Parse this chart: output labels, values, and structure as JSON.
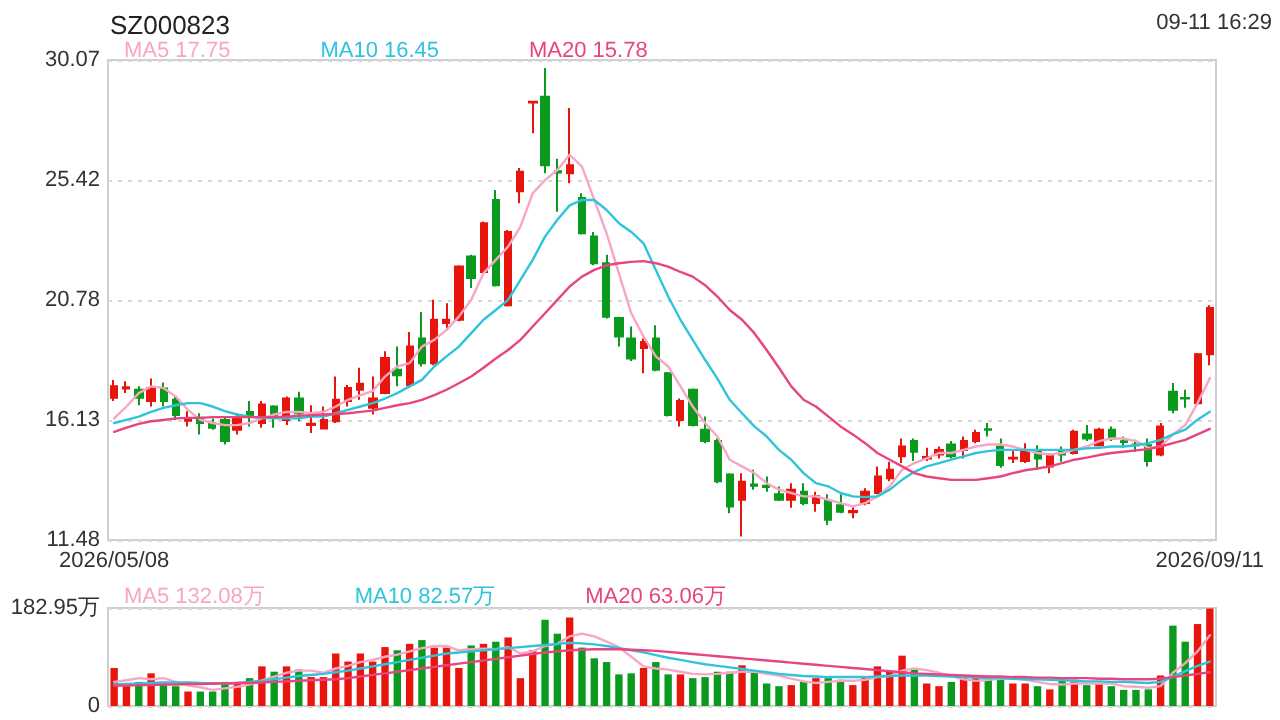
{
  "chart_data": [
    {
      "type": "candlestick",
      "title": "SZ000823",
      "annotations": [
        "09-11 16:29"
      ],
      "legend": "top left",
      "grid": "y",
      "marker": "none",
      "categories": [
        "2026/05/08",
        null,
        null,
        null,
        null,
        null,
        null,
        null,
        null,
        null,
        null,
        null,
        null,
        null,
        null,
        null,
        null,
        null,
        null,
        null,
        null,
        null,
        null,
        null,
        null,
        null,
        null,
        null,
        null,
        null,
        null,
        null,
        null,
        null,
        null,
        null,
        null,
        null,
        null,
        null,
        null,
        null,
        null,
        null,
        null,
        null,
        null,
        null,
        null,
        null,
        null,
        null,
        null,
        null,
        null,
        null,
        null,
        null,
        null,
        null,
        null,
        null,
        null,
        null,
        null,
        null,
        null,
        null,
        null,
        null,
        null,
        null,
        null,
        null,
        null,
        null,
        null,
        null,
        null,
        null,
        null,
        null,
        null,
        null,
        null,
        null,
        null,
        null,
        null,
        "2026/09/11"
      ],
      "ylim": [
        11.48,
        30.07
      ],
      "yticks": [
        11.48,
        16.13,
        20.78,
        25.42,
        30.07
      ],
      "series": [
        {
          "ohlc": [
            [
              16.99,
              17.68,
              16.86,
              17.43
            ],
            [
              17.35,
              17.63,
              17.17,
              17.4
            ],
            [
              17.3,
              17.43,
              16.7,
              16.99
            ],
            [
              16.86,
              17.73,
              16.65,
              17.37
            ],
            [
              17.35,
              17.58,
              16.65,
              16.86
            ],
            [
              16.91,
              17.04,
              16.13,
              16.32
            ],
            [
              16.1,
              16.47,
              15.88,
              16.16
            ],
            [
              16.21,
              16.39,
              15.57,
              16.01
            ],
            [
              16.01,
              16.19,
              15.75,
              15.83
            ],
            [
              16.13,
              16.26,
              15.18,
              15.31
            ],
            [
              15.75,
              16.39,
              15.57,
              16.21
            ],
            [
              16.44,
              16.86,
              15.88,
              16.26
            ],
            [
              16.01,
              16.86,
              15.83,
              16.73
            ],
            [
              16.65,
              16.7,
              15.83,
              16.26
            ],
            [
              16.13,
              17.04,
              15.93,
              16.96
            ],
            [
              16.96,
              17.22,
              16.08,
              16.39
            ],
            [
              15.93,
              16.7,
              15.62,
              15.98
            ],
            [
              15.8,
              16.65,
              15.8,
              16.13
            ],
            [
              16.08,
              17.81,
              16.01,
              16.91
            ],
            [
              16.86,
              17.48,
              16.65,
              17.37
            ],
            [
              17.3,
              18.15,
              16.91,
              17.53
            ],
            [
              16.6,
              17.81,
              16.34,
              16.96
            ],
            [
              17.17,
              18.79,
              17.12,
              18.53
            ],
            [
              18.07,
              18.97,
              17.43,
              17.86
            ],
            [
              17.48,
              19.54,
              17.37,
              18.97
            ],
            [
              19.28,
              20.31,
              18.2,
              18.33
            ],
            [
              18.33,
              20.78,
              18.25,
              20.01
            ],
            [
              19.88,
              20.65,
              19.62,
              20.01
            ],
            [
              20.01,
              22.12,
              19.95,
              22.07
            ],
            [
              22.46,
              22.53,
              21.24,
              21.63
            ],
            [
              21.86,
              23.82,
              21.81,
              23.75
            ],
            [
              24.65,
              25.04,
              21.3,
              21.35
            ],
            [
              20.57,
              23.49,
              20.52,
              23.41
            ],
            [
              24.99,
              25.89,
              24.52,
              25.74
            ],
            [
              28.42,
              28.45,
              27.23,
              28.45
            ],
            [
              28.65,
              29.76,
              25.68,
              25.99
            ],
            [
              25.76,
              26.25,
              24.19,
              25.71
            ],
            [
              25.68,
              28.21,
              25.3,
              25.99
            ],
            [
              24.73,
              24.91,
              23.31,
              23.36
            ],
            [
              23.23,
              23.41,
              22.12,
              22.2
            ],
            [
              22.2,
              22.53,
              20.06,
              20.13
            ],
            [
              20.08,
              20.13,
              18.97,
              19.36
            ],
            [
              19.28,
              19.75,
              18.41,
              18.51
            ],
            [
              18.92,
              19.28,
              17.94,
              19.15
            ],
            [
              19.28,
              19.8,
              18.02,
              18.07
            ],
            [
              17.94,
              17.99,
              16.26,
              16.32
            ],
            [
              16.13,
              16.96,
              15.88,
              16.86
            ],
            [
              17.3,
              17.35,
              15.88,
              15.93
            ],
            [
              15.75,
              16.26,
              15.23,
              15.31
            ],
            [
              15.31,
              15.41,
              13.68,
              13.76
            ],
            [
              14.02,
              14.07,
              12.52,
              12.78
            ],
            [
              13.04,
              14.07,
              11.62,
              13.74
            ],
            [
              13.63,
              14.2,
              13.43,
              13.58
            ],
            [
              13.58,
              13.94,
              13.35,
              13.53
            ],
            [
              13.25,
              13.55,
              12.99,
              13.04
            ],
            [
              13.04,
              13.68,
              12.73,
              13.43
            ],
            [
              13.35,
              13.68,
              12.83,
              12.91
            ],
            [
              12.91,
              13.35,
              12.57,
              13.17
            ],
            [
              12.99,
              13.25,
              12.06,
              12.26
            ],
            [
              12.83,
              13.25,
              12.52,
              12.57
            ],
            [
              12.55,
              12.78,
              12.32,
              12.6
            ],
            [
              12.91,
              13.48,
              12.83,
              13.35
            ],
            [
              13.3,
              14.33,
              13.25,
              13.94
            ],
            [
              13.87,
              14.51,
              13.76,
              14.2
            ],
            [
              14.72,
              15.41,
              14.46,
              15.1
            ],
            [
              15.31,
              15.41,
              14.54,
              14.9
            ],
            [
              14.64,
              15.05,
              14.54,
              14.69
            ],
            [
              14.79,
              15.1,
              14.64,
              14.97
            ],
            [
              15.18,
              15.31,
              14.64,
              14.72
            ],
            [
              14.97,
              15.49,
              14.64,
              15.31
            ],
            [
              15.31,
              15.75,
              15.23,
              15.62
            ],
            [
              15.77,
              16.01,
              15.49,
              15.75
            ],
            [
              15.1,
              15.41,
              14.28,
              14.38
            ],
            [
              14.64,
              14.97,
              14.46,
              14.67
            ],
            [
              14.54,
              15.23,
              14.46,
              14.97
            ],
            [
              14.97,
              15.15,
              14.2,
              14.64
            ],
            [
              14.33,
              14.85,
              14.07,
              14.77
            ],
            [
              14.97,
              15.1,
              14.51,
              14.79
            ],
            [
              14.85,
              15.75,
              14.79,
              15.67
            ],
            [
              15.57,
              15.93,
              15.31,
              15.41
            ],
            [
              15.15,
              15.83,
              15.1,
              15.75
            ],
            [
              15.75,
              15.88,
              15.31,
              15.41
            ],
            [
              15.3,
              15.49,
              15.05,
              15.28
            ],
            [
              15.18,
              15.36,
              14.9,
              15.15
            ],
            [
              15.15,
              15.41,
              14.33,
              14.54
            ],
            [
              14.79,
              16.01,
              14.72,
              15.88
            ],
            [
              17.22,
              17.56,
              16.39,
              16.52
            ],
            [
              16.98,
              17.3,
              16.6,
              16.96
            ],
            [
              16.78,
              18.72,
              16.7,
              18.67
            ],
            [
              18.67,
              20.57,
              18.25,
              20.47
            ]
          ],
          "colors": [
            "#e8150d",
            "#e8150d",
            "#0a9b1e",
            "#e8150d",
            "#0a9b1e",
            "#0a9b1e",
            "#e8150d",
            "#0a9b1e",
            "#0a9b1e",
            "#0a9b1e",
            "#e8150d",
            "#0a9b1e",
            "#e8150d",
            "#0a9b1e",
            "#e8150d",
            "#0a9b1e",
            "#e8150d",
            "#e8150d",
            "#e8150d",
            "#e8150d",
            "#e8150d",
            "#e8150d",
            "#e8150d",
            "#0a9b1e",
            "#e8150d",
            "#0a9b1e",
            "#e8150d",
            "#e8150d",
            "#e8150d",
            "#0a9b1e",
            "#e8150d",
            "#0a9b1e",
            "#e8150d",
            "#e8150d",
            "#e8150d",
            "#0a9b1e",
            "#0a9b1e",
            "#e8150d",
            "#0a9b1e",
            "#0a9b1e",
            "#0a9b1e",
            "#0a9b1e",
            "#0a9b1e",
            "#e8150d",
            "#0a9b1e",
            "#0a9b1e",
            "#e8150d",
            "#0a9b1e",
            "#0a9b1e",
            "#0a9b1e",
            "#0a9b1e",
            "#e8150d",
            "#0a9b1e",
            "#0a9b1e",
            "#0a9b1e",
            "#e8150d",
            "#0a9b1e",
            "#e8150d",
            "#0a9b1e",
            "#0a9b1e",
            "#e8150d",
            "#e8150d",
            "#e8150d",
            "#e8150d",
            "#e8150d",
            "#0a9b1e",
            "#e8150d",
            "#e8150d",
            "#0a9b1e",
            "#e8150d",
            "#e8150d",
            "#0a9b1e",
            "#0a9b1e",
            "#e8150d",
            "#e8150d",
            "#0a9b1e",
            "#e8150d",
            "#0a9b1e",
            "#e8150d",
            "#0a9b1e",
            "#e8150d",
            "#0a9b1e",
            "#0a9b1e",
            "#0a9b1e",
            "#0a9b1e",
            "#e8150d",
            "#0a9b1e",
            "#0a9b1e",
            "#e8150d",
            "#e8150d"
          ]
        },
        {
          "type": "line",
          "name": "MA5 17.75",
          "color": "#f7a6c3",
          "values": [
            16.19,
            16.65,
            17.17,
            17.43,
            17.37,
            17.04,
            16.52,
            16.13,
            16.01,
            15.93,
            15.93,
            16.01,
            16.19,
            16.34,
            16.44,
            16.44,
            16.39,
            16.44,
            16.65,
            16.91,
            17.09,
            17.25,
            17.81,
            18.2,
            18.33,
            18.97,
            19.23,
            19.62,
            20.13,
            20.78,
            21.81,
            22.33,
            22.84,
            23.62,
            24.91,
            25.42,
            25.81,
            26.4,
            25.94,
            24.65,
            23.36,
            21.81,
            20.26,
            19.36,
            18.59,
            18.2,
            17.43,
            16.65,
            16.01,
            15.49,
            14.59,
            14.33,
            14.07,
            13.68,
            13.43,
            13.3,
            13.17,
            13.17,
            13.04,
            12.91,
            12.78,
            12.91,
            13.17,
            13.56,
            14.2,
            14.46,
            14.64,
            14.85,
            14.85,
            14.97,
            15.1,
            15.18,
            15.18,
            15.1,
            14.97,
            14.85,
            14.79,
            14.85,
            14.97,
            15.1,
            15.31,
            15.41,
            15.41,
            15.31,
            15.05,
            15.1,
            15.57,
            15.93,
            16.78,
            17.75
          ]
        },
        {
          "type": "line",
          "name": "MA10 16.45",
          "color": "#2ec4dc",
          "values": [
            16.01,
            16.13,
            16.26,
            16.44,
            16.6,
            16.7,
            16.78,
            16.78,
            16.65,
            16.47,
            16.34,
            16.26,
            16.21,
            16.19,
            16.19,
            16.19,
            16.26,
            16.26,
            16.39,
            16.52,
            16.65,
            16.78,
            16.96,
            17.17,
            17.43,
            17.68,
            18.2,
            18.59,
            18.97,
            19.49,
            20.01,
            20.39,
            20.78,
            21.55,
            22.33,
            23.23,
            23.88,
            24.44,
            24.65,
            24.65,
            24.26,
            23.75,
            23.41,
            22.97,
            21.94,
            20.91,
            20.01,
            19.23,
            18.46,
            17.73,
            16.91,
            16.39,
            15.88,
            15.49,
            14.97,
            14.59,
            14.07,
            13.68,
            13.56,
            13.3,
            13.17,
            13.14,
            13.17,
            13.43,
            13.81,
            14.12,
            14.33,
            14.46,
            14.59,
            14.72,
            14.85,
            14.92,
            14.97,
            14.97,
            14.97,
            14.97,
            14.97,
            14.97,
            14.97,
            15.03,
            15.05,
            15.1,
            15.1,
            15.15,
            15.23,
            15.36,
            15.57,
            15.75,
            16.14,
            16.45
          ]
        },
        {
          "type": "line",
          "name": "MA20 15.78",
          "color": "#e8457e",
          "values": [
            15.67,
            15.83,
            15.98,
            16.08,
            16.13,
            16.19,
            16.21,
            16.21,
            16.24,
            16.24,
            16.24,
            16.24,
            16.24,
            16.24,
            16.26,
            16.29,
            16.31,
            16.34,
            16.36,
            16.39,
            16.44,
            16.49,
            16.6,
            16.7,
            16.78,
            16.91,
            17.09,
            17.3,
            17.55,
            17.81,
            18.15,
            18.51,
            18.84,
            19.23,
            19.75,
            20.26,
            20.78,
            21.3,
            21.68,
            21.94,
            22.12,
            22.2,
            22.25,
            22.28,
            22.2,
            22.07,
            21.86,
            21.68,
            21.35,
            20.91,
            20.39,
            20.01,
            19.49,
            18.84,
            18.15,
            17.43,
            16.91,
            16.65,
            16.27,
            15.88,
            15.57,
            15.23,
            14.85,
            14.59,
            14.33,
            14.07,
            13.94,
            13.87,
            13.81,
            13.81,
            13.81,
            13.87,
            13.94,
            14.07,
            14.18,
            14.25,
            14.33,
            14.46,
            14.59,
            14.67,
            14.77,
            14.85,
            14.9,
            14.95,
            15.0,
            15.1,
            15.23,
            15.36,
            15.57,
            15.78
          ]
        }
      ]
    },
    {
      "type": "bar",
      "legend": "top left",
      "grid": "y",
      "marker": "none",
      "tick_labels": "y",
      "categories": [
        null,
        null,
        null,
        null,
        null,
        null,
        null,
        null,
        null,
        null,
        null,
        null,
        null,
        null,
        null,
        null,
        null,
        null,
        null,
        null,
        null,
        null,
        null,
        null,
        null,
        null,
        null,
        null,
        null,
        null,
        null,
        null,
        null,
        null,
        null,
        null,
        null,
        null,
        null,
        null,
        null,
        null,
        null,
        null,
        null,
        null,
        null,
        null,
        null,
        null,
        null,
        null,
        null,
        null,
        null,
        null,
        null,
        null,
        null,
        null,
        null,
        null,
        null,
        null,
        null,
        null,
        null,
        null,
        null,
        null,
        null,
        null,
        null,
        null,
        null,
        null,
        null,
        null,
        null,
        null,
        null,
        null,
        null,
        null,
        null,
        null,
        null,
        null,
        null,
        null
      ],
      "ylim": [
        0,
        182.95
      ],
      "yticks": [
        0,
        {
          "value": 182.95,
          "label": "182.95万"
        }
      ],
      "series": [
        {
          "values": [
            71,
            42,
            45,
            61,
            39,
            37,
            27,
            27,
            27,
            45,
            45,
            52,
            74,
            64,
            74,
            68,
            54,
            54,
            98,
            83,
            98,
            83,
            110,
            104,
            116,
            123,
            109,
            109,
            71,
            113,
            116,
            120,
            128,
            52,
            104,
            161,
            135,
            165,
            109,
            89,
            82,
            59,
            61,
            71,
            82,
            59,
            59,
            52,
            54,
            64,
            64,
            76,
            64,
            42,
            37,
            39,
            45,
            52,
            52,
            49,
            39,
            54,
            74,
            64,
            94,
            71,
            42,
            37,
            45,
            54,
            54,
            52,
            52,
            42,
            42,
            37,
            31,
            49,
            49,
            39,
            42,
            37,
            30,
            30,
            31,
            57,
            150,
            120,
            153,
            182
          ],
          "colors": [
            "#e8150d",
            "#e8150d",
            "#0a9b1e",
            "#e8150d",
            "#0a9b1e",
            "#0a9b1e",
            "#e8150d",
            "#0a9b1e",
            "#0a9b1e",
            "#0a9b1e",
            "#e8150d",
            "#0a9b1e",
            "#e8150d",
            "#0a9b1e",
            "#e8150d",
            "#0a9b1e",
            "#e8150d",
            "#e8150d",
            "#e8150d",
            "#e8150d",
            "#e8150d",
            "#e8150d",
            "#e8150d",
            "#0a9b1e",
            "#e8150d",
            "#0a9b1e",
            "#e8150d",
            "#e8150d",
            "#e8150d",
            "#0a9b1e",
            "#e8150d",
            "#0a9b1e",
            "#e8150d",
            "#e8150d",
            "#e8150d",
            "#0a9b1e",
            "#0a9b1e",
            "#e8150d",
            "#0a9b1e",
            "#0a9b1e",
            "#0a9b1e",
            "#0a9b1e",
            "#0a9b1e",
            "#e8150d",
            "#0a9b1e",
            "#0a9b1e",
            "#e8150d",
            "#0a9b1e",
            "#0a9b1e",
            "#0a9b1e",
            "#0a9b1e",
            "#e8150d",
            "#0a9b1e",
            "#0a9b1e",
            "#0a9b1e",
            "#e8150d",
            "#0a9b1e",
            "#e8150d",
            "#0a9b1e",
            "#0a9b1e",
            "#e8150d",
            "#e8150d",
            "#e8150d",
            "#e8150d",
            "#e8150d",
            "#0a9b1e",
            "#e8150d",
            "#e8150d",
            "#0a9b1e",
            "#e8150d",
            "#e8150d",
            "#0a9b1e",
            "#0a9b1e",
            "#e8150d",
            "#e8150d",
            "#0a9b1e",
            "#e8150d",
            "#0a9b1e",
            "#e8150d",
            "#0a9b1e",
            "#e8150d",
            "#0a9b1e",
            "#0a9b1e",
            "#0a9b1e",
            "#0a9b1e",
            "#e8150d",
            "#0a9b1e",
            "#0a9b1e",
            "#e8150d",
            "#e8150d"
          ]
        },
        {
          "type": "line",
          "name": "MA5 132.08万",
          "color": "#f7a6c3",
          "values": [
            45,
            48,
            52,
            50,
            52,
            45,
            38,
            35,
            30,
            33,
            36,
            40,
            48,
            55,
            62,
            66,
            66,
            62,
            70,
            75,
            82,
            86,
            92,
            96,
            102,
            108,
            112,
            112,
            104,
            106,
            107,
            106,
            110,
            98,
            102,
            112,
            116,
            130,
            135,
            130,
            120,
            110,
            92,
            74,
            70,
            68,
            64,
            60,
            59,
            60,
            62,
            64,
            64,
            60,
            57,
            51,
            46,
            43,
            45,
            47,
            47,
            49,
            54,
            56,
            66,
            70,
            67,
            62,
            56,
            50,
            47,
            49,
            51,
            51,
            49,
            45,
            41,
            40,
            42,
            42,
            42,
            42,
            37,
            36,
            34,
            37,
            62,
            80,
            102,
            132
          ]
        },
        {
          "type": "line",
          "name": "MA10 82.57万",
          "color": "#2ec4dc",
          "values": [
            40,
            41,
            42,
            43,
            44,
            44,
            44,
            43,
            42,
            42,
            43,
            45,
            47,
            50,
            53,
            56,
            58,
            60,
            63,
            66,
            70,
            74,
            78,
            82,
            86,
            90,
            94,
            98,
            100,
            102,
            104,
            106,
            108,
            110,
            112,
            114,
            116,
            118,
            117,
            115,
            112,
            108,
            104,
            100,
            95,
            90,
            86,
            82,
            78,
            75,
            72,
            69,
            66,
            63,
            60,
            58,
            56,
            55,
            54,
            54,
            54,
            54,
            55,
            56,
            57,
            57,
            57,
            56,
            55,
            54,
            53,
            52,
            52,
            51,
            50,
            50,
            49,
            48,
            47,
            46,
            46,
            45,
            45,
            44,
            43,
            45,
            55,
            65,
            75,
            83
          ]
        },
        {
          "type": "line",
          "name": "MA20 63.06万",
          "color": "#e8457e",
          "values": [
            38,
            38,
            39,
            39,
            40,
            40,
            41,
            41,
            42,
            42,
            43,
            43,
            44,
            45,
            46,
            47,
            48,
            49,
            50,
            52,
            55,
            58,
            61,
            64,
            67,
            70,
            73,
            76,
            79,
            82,
            85,
            88,
            91,
            94,
            97,
            100,
            102,
            104,
            105,
            106,
            106,
            106,
            105,
            104,
            103,
            101,
            99,
            97,
            95,
            93,
            91,
            89,
            87,
            85,
            83,
            81,
            79,
            77,
            75,
            73,
            71,
            69,
            67,
            65,
            63,
            61,
            60,
            59,
            58,
            57,
            56,
            55,
            55,
            54,
            54,
            53,
            53,
            52,
            52,
            52,
            51,
            51,
            50,
            50,
            50,
            51,
            54,
            57,
            60,
            63
          ]
        }
      ]
    }
  ]
}
